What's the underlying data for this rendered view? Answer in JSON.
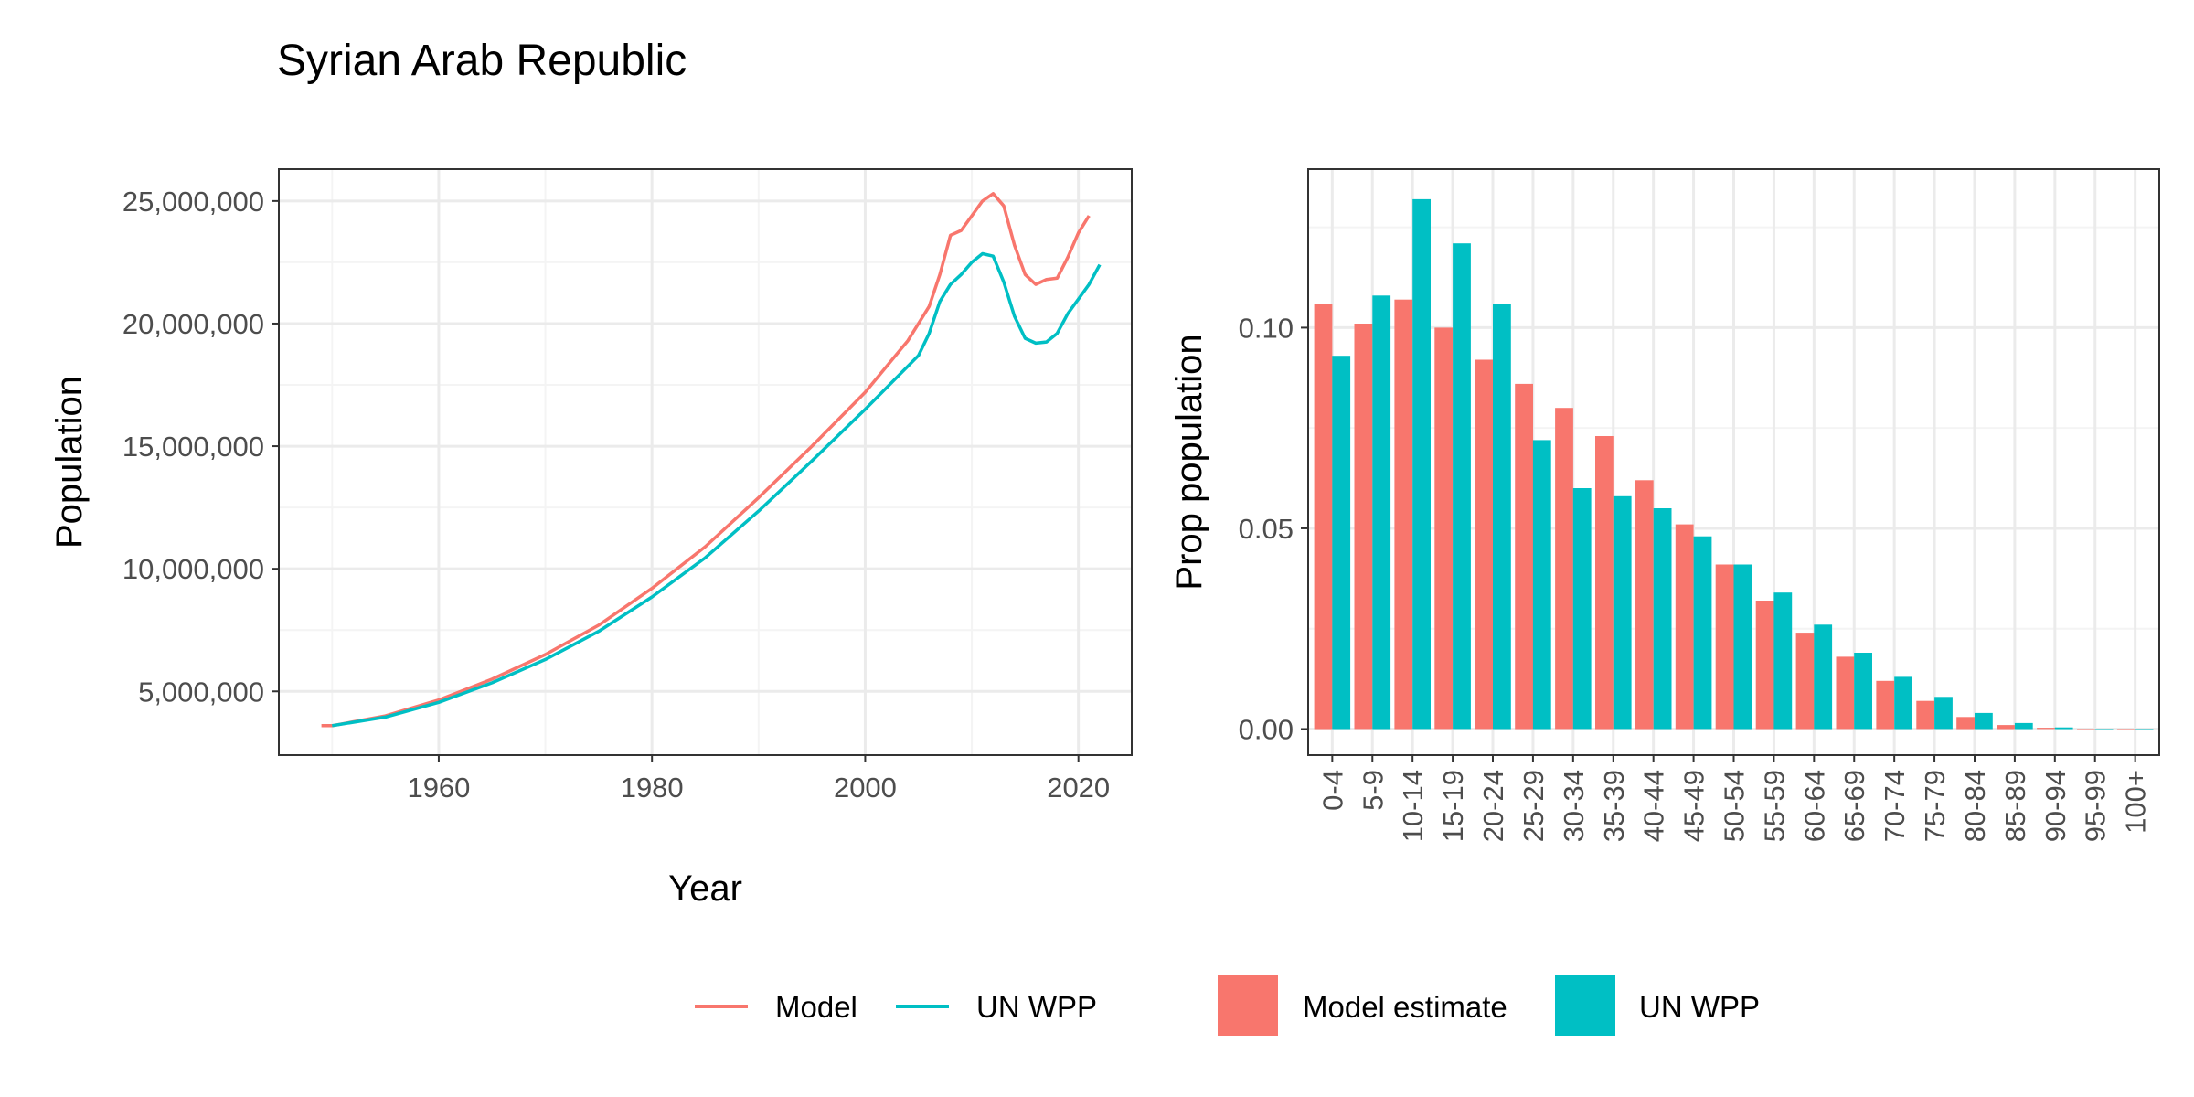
{
  "title": "Syrian Arab Republic",
  "colors": {
    "model": "#F8766D",
    "unwpp": "#00BFC4",
    "grid_major": "#EBEBEB",
    "grid_minor": "#F4F4F4",
    "panel_border": "#333333"
  },
  "legend_lines": [
    {
      "label": "Model",
      "color": "#F8766D"
    },
    {
      "label": "UN WPP",
      "color": "#00BFC4"
    }
  ],
  "legend_bars": [
    {
      "label": "Model estimate",
      "color": "#F8766D"
    },
    {
      "label": "UN WPP",
      "color": "#00BFC4"
    }
  ],
  "chart_data": [
    {
      "type": "line",
      "xlabel": "Year",
      "ylabel": "Population",
      "xlim": [
        1945,
        2025
      ],
      "ylim": [
        2400000,
        26300000
      ],
      "x_ticks": [
        1960,
        1980,
        2000,
        2020
      ],
      "y_ticks": [
        5000000,
        10000000,
        15000000,
        20000000,
        25000000
      ],
      "y_tick_labels": [
        "5,000,000",
        "10,000,000",
        "15,000,000",
        "20,000,000",
        "25,000,000"
      ],
      "grid": true,
      "series": [
        {
          "name": "Model",
          "color": "#F8766D",
          "x": [
            1949,
            1950,
            1955,
            1960,
            1965,
            1970,
            1975,
            1980,
            1985,
            1990,
            1995,
            2000,
            2004,
            2006,
            2007,
            2008,
            2009,
            2010,
            2011,
            2012,
            2013,
            2014,
            2015,
            2016,
            2017,
            2018,
            2019,
            2020,
            2021
          ],
          "y": [
            3600000,
            3600000,
            4000000,
            4650000,
            5500000,
            6500000,
            7700000,
            9200000,
            10900000,
            12900000,
            15000000,
            17200000,
            19300000,
            20700000,
            22000000,
            23600000,
            23800000,
            24400000,
            25000000,
            25300000,
            24800000,
            23200000,
            22000000,
            21600000,
            21800000,
            21850000,
            22700000,
            23700000,
            24400000
          ]
        },
        {
          "name": "UN WPP",
          "color": "#00BFC4",
          "x": [
            1950,
            1955,
            1960,
            1965,
            1970,
            1975,
            1980,
            1985,
            1990,
            1995,
            2000,
            2005,
            2006,
            2007,
            2008,
            2009,
            2010,
            2011,
            2012,
            2013,
            2014,
            2015,
            2016,
            2017,
            2018,
            2019,
            2020,
            2021,
            2022
          ],
          "y": [
            3600000,
            3950000,
            4550000,
            5350000,
            6300000,
            7450000,
            8850000,
            10450000,
            12350000,
            14400000,
            16500000,
            18700000,
            19600000,
            20900000,
            21600000,
            22000000,
            22500000,
            22850000,
            22750000,
            21700000,
            20300000,
            19400000,
            19200000,
            19250000,
            19600000,
            20400000,
            21000000,
            21600000,
            22400000
          ]
        }
      ]
    },
    {
      "type": "bar",
      "ylabel": "Prop population",
      "xlabel": "",
      "ylim": [
        -0.0065,
        0.1395
      ],
      "y_ticks": [
        0.0,
        0.05,
        0.1
      ],
      "y_tick_labels": [
        "0.00",
        "0.05",
        "0.10"
      ],
      "grid": true,
      "categories": [
        "0-4",
        "5-9",
        "10-14",
        "15-19",
        "20-24",
        "25-29",
        "30-34",
        "35-39",
        "40-44",
        "45-49",
        "50-54",
        "55-59",
        "60-64",
        "65-69",
        "70-74",
        "75-79",
        "80-84",
        "85-89",
        "90-94",
        "95-99",
        "100+"
      ],
      "series": [
        {
          "name": "Model estimate",
          "color": "#F8766D",
          "values": [
            0.106,
            0.101,
            0.107,
            0.1,
            0.092,
            0.086,
            0.08,
            0.073,
            0.062,
            0.051,
            0.041,
            0.032,
            0.024,
            0.018,
            0.012,
            0.007,
            0.003,
            0.001,
            0.0003,
            0.0001,
            5e-05
          ]
        },
        {
          "name": "UN WPP",
          "color": "#00BFC4",
          "values": [
            0.093,
            0.108,
            0.132,
            0.121,
            0.106,
            0.072,
            0.06,
            0.058,
            0.055,
            0.048,
            0.041,
            0.034,
            0.026,
            0.019,
            0.013,
            0.008,
            0.004,
            0.0015,
            0.0004,
            0.0001,
            3e-05
          ]
        }
      ]
    }
  ]
}
